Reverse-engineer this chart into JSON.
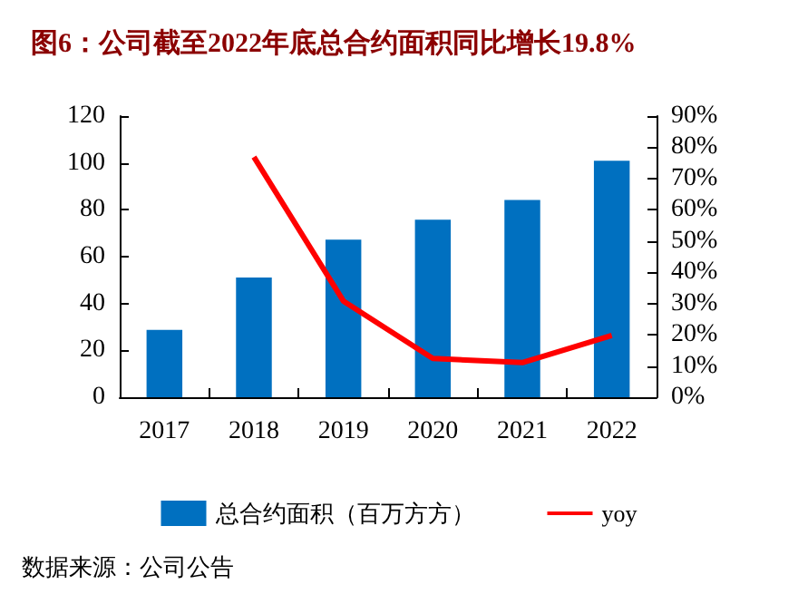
{
  "chart_data": {
    "type": "bar",
    "title": "图6：公司截至2022年底总合约面积同比增长19.8%",
    "categories": [
      "2017",
      "2018",
      "2019",
      "2020",
      "2021",
      "2022"
    ],
    "series": [
      {
        "name": "总合约面积（百万方方）",
        "color": "#0070c0",
        "values": [
          28.7,
          51.1,
          67.3,
          75.8,
          84.2,
          100.9
        ]
      },
      {
        "name": "yoy",
        "type": "line",
        "axis": "y2",
        "color": "#ff0000",
        "values": [
          null,
          76.9,
          30.8,
          12.4,
          11.1,
          19.8
        ]
      }
    ],
    "ylim": [
      0,
      120
    ],
    "yticks": [
      0,
      20,
      40,
      60,
      80,
      100,
      120
    ],
    "y2lim": [
      0,
      90
    ],
    "y2ticks": [
      {
        "value": 0,
        "label": "0%"
      },
      {
        "value": 10,
        "label": "10%"
      },
      {
        "value": 20,
        "label": "20%"
      },
      {
        "value": 30,
        "label": "30%"
      },
      {
        "value": 40,
        "label": "40%"
      },
      {
        "value": 50,
        "label": "50%"
      },
      {
        "value": 60,
        "label": "60%"
      },
      {
        "value": 70,
        "label": "70%"
      },
      {
        "value": 80,
        "label": "80%"
      },
      {
        "value": 90,
        "label": "90%"
      }
    ],
    "grid": false,
    "legend": "bottom",
    "marker": "none",
    "annotations": [
      "数据来源：公司公告"
    ]
  }
}
